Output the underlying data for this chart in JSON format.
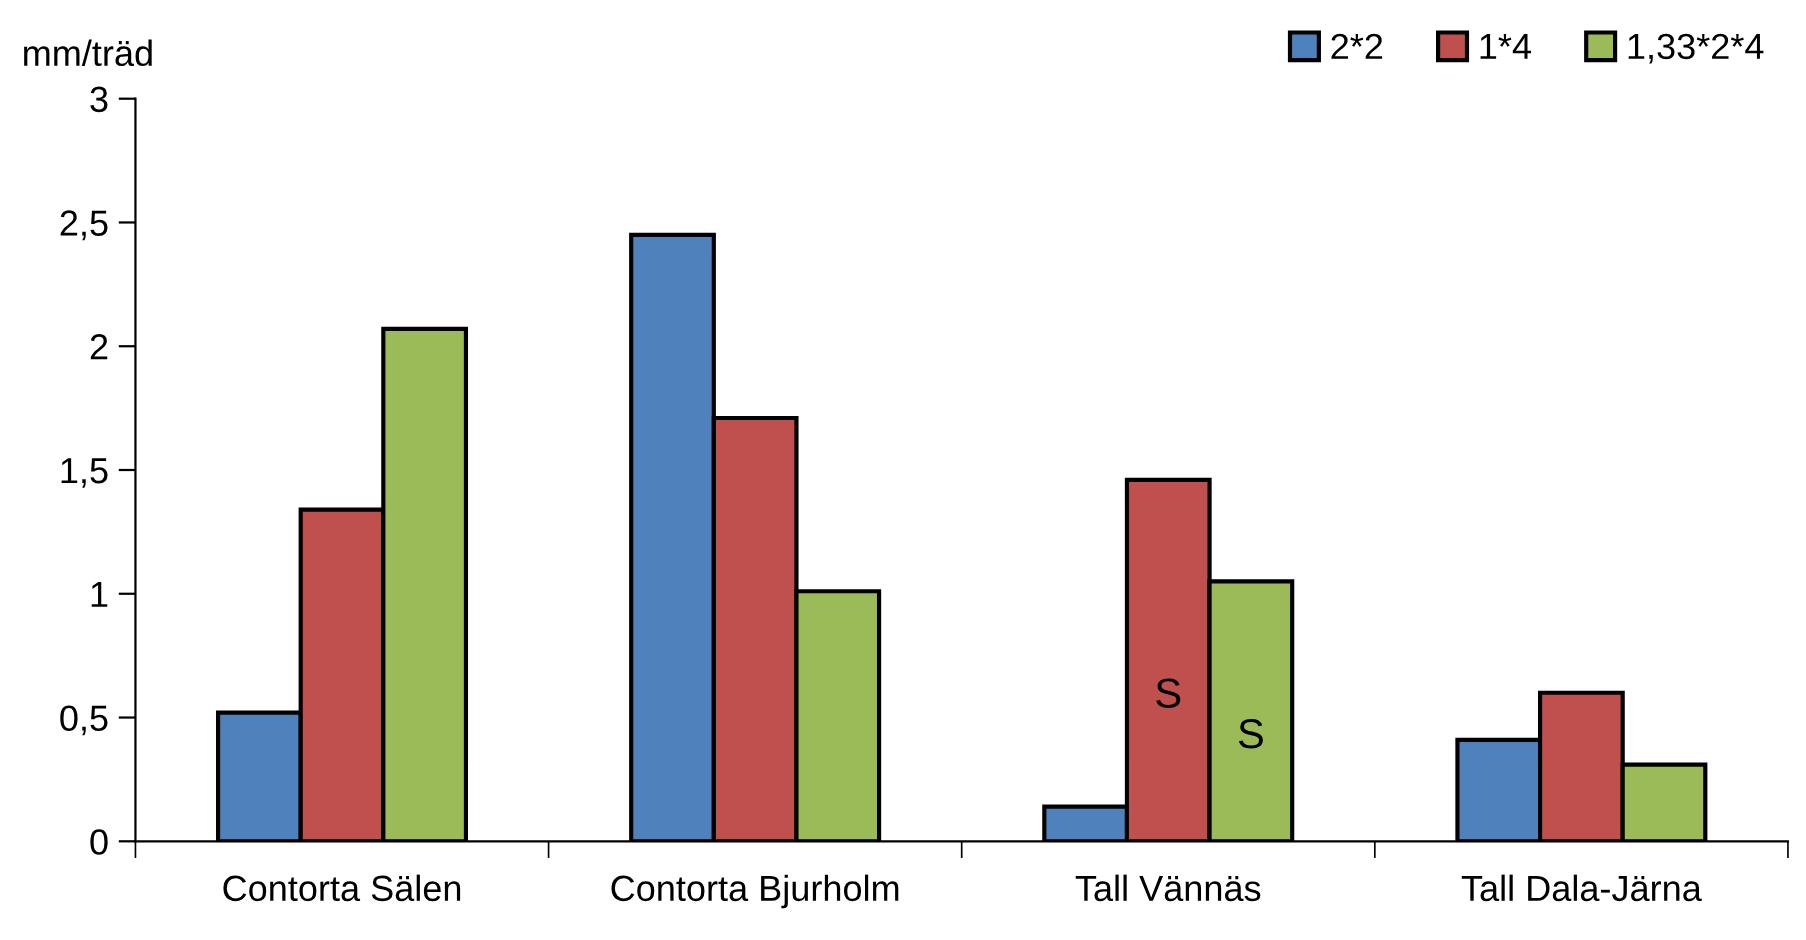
{
  "chart_data": {
    "type": "bar",
    "ylabel": "mm/träd",
    "categories": [
      "Contorta Sälen",
      "Contorta Bjurholm",
      "Tall Vännäs",
      "Tall Dala-Järna"
    ],
    "series": [
      {
        "name": "2*2",
        "color": "#4f81bd",
        "values": [
          0.52,
          2.45,
          0.14,
          0.41
        ]
      },
      {
        "name": "1*4",
        "color": "#c0504d",
        "values": [
          1.34,
          1.71,
          1.46,
          0.6
        ],
        "value_labels": [
          null,
          null,
          "S",
          null
        ]
      },
      {
        "name": "1,33*2*4",
        "color": "#9bbb59",
        "values": [
          2.07,
          1.01,
          1.05,
          0.31
        ],
        "value_labels": [
          null,
          null,
          "S",
          null
        ]
      }
    ],
    "ylim": [
      0,
      3
    ],
    "yticks": [
      0,
      {
        "value": 0.5,
        "label": "0,5"
      },
      1,
      {
        "value": 1.5,
        "label": "1,5"
      },
      2,
      {
        "value": 2.5,
        "label": "2,5"
      },
      3
    ],
    "grid": false,
    "legend": "top right"
  }
}
